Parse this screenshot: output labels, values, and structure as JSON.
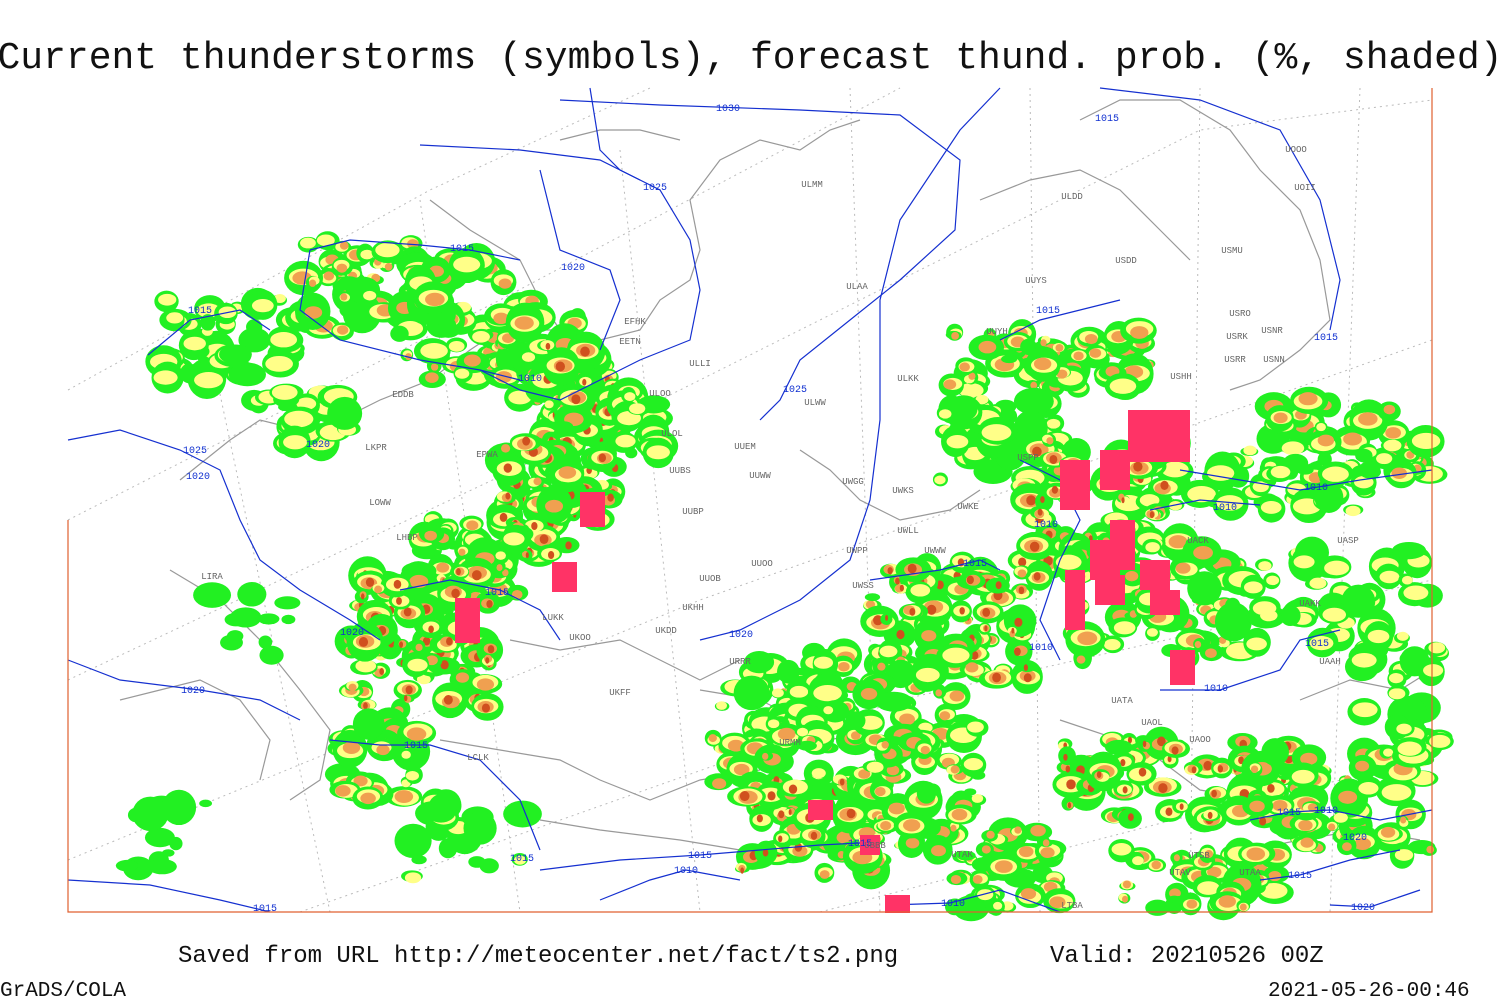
{
  "header": {
    "title": "Current thunderstorms (symbols), forecast thund. prob. (%, shaded)"
  },
  "isobar_labels": [
    1030,
    1025,
    1015,
    1015,
    1020,
    1015,
    1015,
    1015,
    1010,
    1025,
    1020,
    1025,
    1020,
    1010,
    1010,
    1010,
    1015,
    1015,
    1020,
    1020,
    1010,
    1015,
    1010,
    1020,
    1015,
    1015,
    1010,
    1020,
    1015,
    1015,
    1015,
    1010,
    1015,
    1010,
    1015,
    1020
  ],
  "station_labels": [
    "UOOO",
    "UOII",
    "ULMM",
    "ULDD",
    "USMU",
    "USDD",
    "ULAA",
    "UUYS",
    "USRO",
    "USRK",
    "USNR",
    "UUYH",
    "USRR",
    "USNN",
    "EFHK",
    "EETN",
    "ULLI",
    "ULKK",
    "USHH",
    "ULWW",
    "ULOO",
    "EDDB",
    "ULOL",
    "UUEM",
    "LKPR",
    "EPWA",
    "UUBS",
    "UUWW",
    "UWGG",
    "UWKS",
    "USPP",
    "LOWW",
    "LHBP",
    "UUBP",
    "UWKE",
    "UWLL",
    "UWWW",
    "UACK",
    "UASP",
    "UUOO",
    "UWPP",
    "UUOB",
    "UWSS",
    "LIRA",
    "UKHH",
    "UKDD",
    "LUKK",
    "UKOO",
    "URRR",
    "UKFF",
    "URMM",
    "UATA",
    "UAOL",
    "UAOO",
    "UAKK",
    "UAAH",
    "UBBB",
    "UTAK",
    "UTSB",
    "UTAV",
    "UTAA",
    "LTBA",
    "LCLK"
  ],
  "footer": {
    "source": "Saved from URL http://meteocenter.net/fact/ts2.png",
    "valid": "Valid: 20210526 00Z",
    "software": "GrADS/COLA",
    "timestamp": "2021-05-26-00:46"
  }
}
